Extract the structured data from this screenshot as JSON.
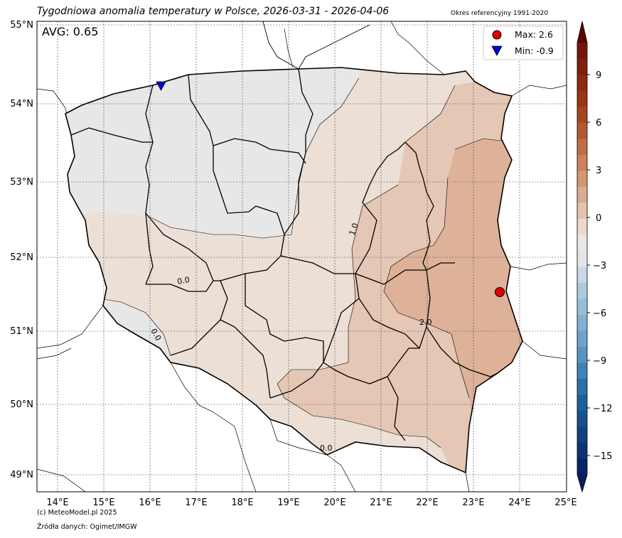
{
  "title": "Tygodniowa anomalia temperatury w Polsce, 2026-03-31 - 2026-04-06",
  "reference_period": "Okres referencyjny 1991-2020",
  "avg_label": "AVG: 0.65",
  "legend": {
    "max_label": "Max: 2.6",
    "min_label": "Min: -0.9"
  },
  "footer": {
    "copyright": "(c) MeteoModel.pl 2025",
    "source": "Źródła danych: Ogimet/IMGW"
  },
  "axes": {
    "lat_ticks": [
      "55°N",
      "54°N",
      "53°N",
      "52°N",
      "51°N",
      "50°N",
      "49°N"
    ],
    "lon_ticks": [
      "14°E",
      "15°E",
      "16°E",
      "17°E",
      "18°E",
      "19°E",
      "20°E",
      "21°E",
      "22°E",
      "23°E",
      "24°E",
      "25°E"
    ]
  },
  "colorbar": {
    "ticks": [
      "9",
      "6",
      "3",
      "0",
      "−3",
      "−6",
      "−9",
      "−12",
      "−15"
    ]
  },
  "contour_labels": [
    "1.0",
    "2.0",
    "0.0",
    "0.0",
    "0.0"
  ],
  "colors": {
    "near_zero": "#e7e7e7",
    "anomaly_0_1": "#ecdfd6",
    "anomaly_1_2": "#e5c7b5",
    "anomaly_2_3": "#deb298",
    "max_marker": "#e00000",
    "min_marker": "#0000e0"
  }
}
